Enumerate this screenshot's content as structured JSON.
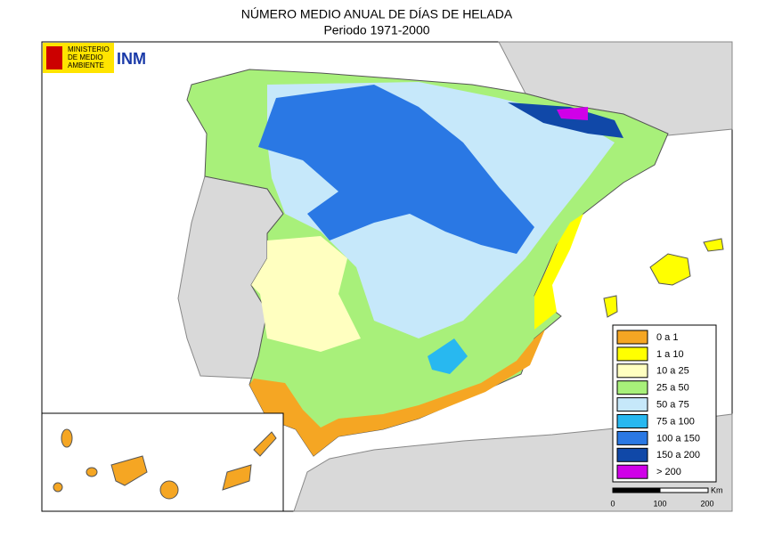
{
  "header": {
    "title": "NÚMERO MEDIO ANUAL DE DÍAS DE HELADA",
    "subtitle": "Periodo 1971-2000"
  },
  "logo": {
    "lines": [
      "MINISTERIO",
      "DE MEDIO",
      "AMBIENTE"
    ],
    "agency": "INM"
  },
  "legend": {
    "items": [
      {
        "label": "0 a 1",
        "color": "#f5a623"
      },
      {
        "label": "1 a 10",
        "color": "#ffff00"
      },
      {
        "label": "10 a 25",
        "color": "#ffffc0"
      },
      {
        "label": "25 a 50",
        "color": "#a8f07a"
      },
      {
        "label": "50 a 75",
        "color": "#c6e8fa"
      },
      {
        "label": "75 a 100",
        "color": "#28b8f0"
      },
      {
        "label": "100 a 150",
        "color": "#2a78e4"
      },
      {
        "label": "150 a 200",
        "color": "#1048a8"
      },
      {
        "label": "> 200",
        "color": "#d000e8"
      }
    ]
  },
  "scale": {
    "unit": "Km",
    "labels": [
      "0",
      "100",
      "200"
    ]
  }
}
